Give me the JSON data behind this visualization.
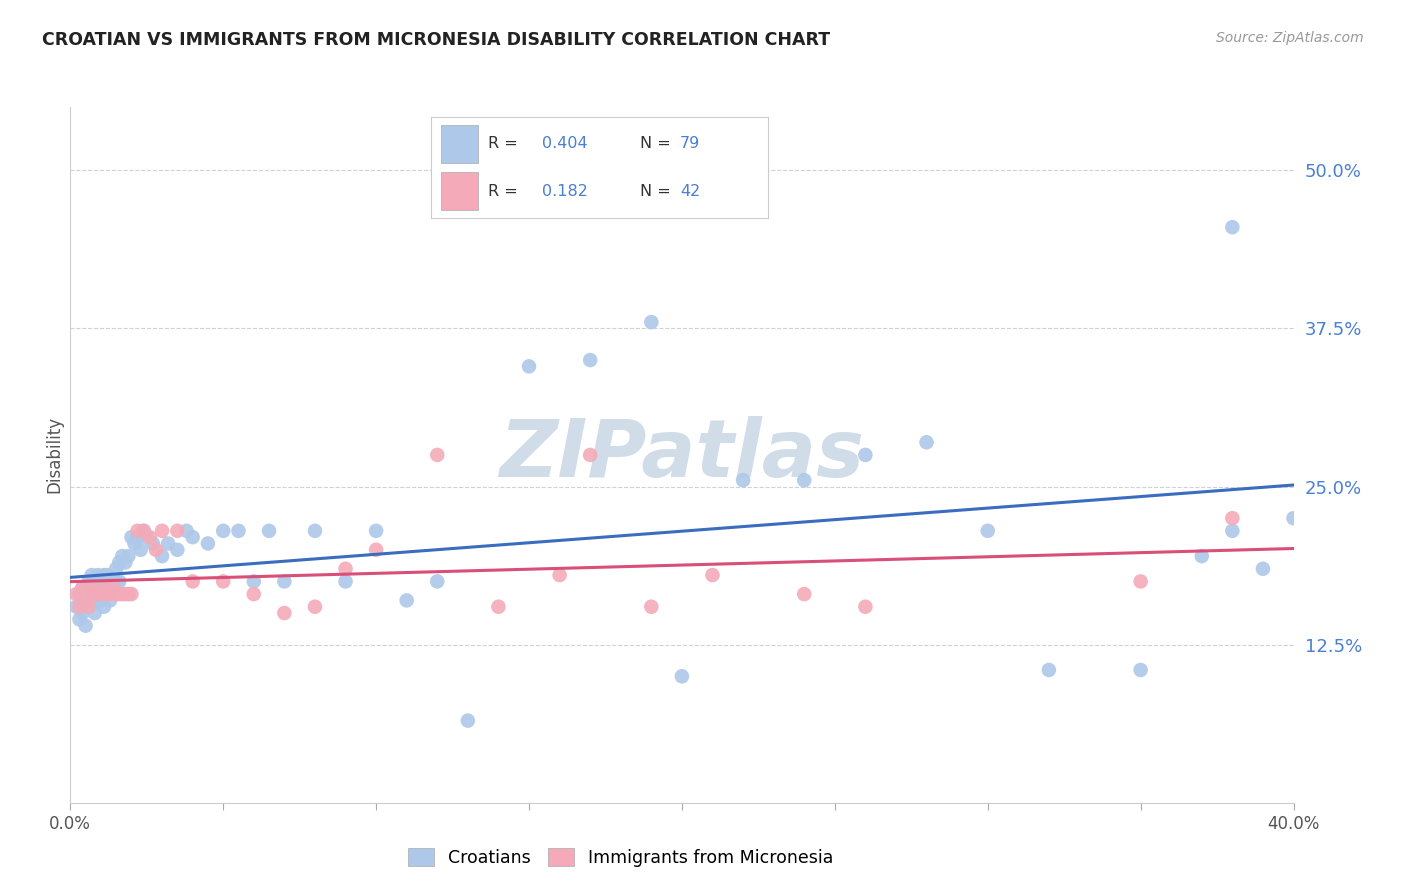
{
  "title": "CROATIAN VS IMMIGRANTS FROM MICRONESIA DISABILITY CORRELATION CHART",
  "source": "Source: ZipAtlas.com",
  "ylabel": "Disability",
  "ytick_labels": [
    "50.0%",
    "37.5%",
    "25.0%",
    "12.5%"
  ],
  "ytick_values": [
    0.5,
    0.375,
    0.25,
    0.125
  ],
  "xlim": [
    0.0,
    0.4
  ],
  "ylim": [
    0.0,
    0.55
  ],
  "legend1_r": "0.404",
  "legend1_n": "79",
  "legend2_r": "0.182",
  "legend2_n": "42",
  "croatian_color": "#adc8e8",
  "micronesia_color": "#f4aab8",
  "line_blue": "#3a6dbf",
  "line_pink": "#d94f78",
  "text_blue": "#4a7fd4",
  "watermark_color": "#d0dce8",
  "croatian_x": [
    0.002,
    0.003,
    0.003,
    0.004,
    0.004,
    0.005,
    0.005,
    0.005,
    0.006,
    0.006,
    0.006,
    0.007,
    0.007,
    0.007,
    0.008,
    0.008,
    0.008,
    0.009,
    0.009,
    0.009,
    0.01,
    0.01,
    0.01,
    0.011,
    0.011,
    0.011,
    0.012,
    0.012,
    0.013,
    0.013,
    0.014,
    0.014,
    0.015,
    0.015,
    0.016,
    0.016,
    0.017,
    0.018,
    0.019,
    0.02,
    0.021,
    0.022,
    0.023,
    0.024,
    0.025,
    0.027,
    0.03,
    0.032,
    0.035,
    0.038,
    0.04,
    0.045,
    0.05,
    0.055,
    0.06,
    0.065,
    0.07,
    0.08,
    0.09,
    0.1,
    0.11,
    0.12,
    0.13,
    0.15,
    0.17,
    0.19,
    0.2,
    0.22,
    0.24,
    0.26,
    0.28,
    0.3,
    0.32,
    0.35,
    0.37,
    0.38,
    0.38,
    0.39,
    0.4
  ],
  "croatian_y": [
    0.155,
    0.145,
    0.165,
    0.15,
    0.17,
    0.16,
    0.14,
    0.17,
    0.155,
    0.175,
    0.16,
    0.16,
    0.18,
    0.17,
    0.16,
    0.175,
    0.15,
    0.16,
    0.175,
    0.18,
    0.16,
    0.175,
    0.165,
    0.17,
    0.18,
    0.155,
    0.17,
    0.18,
    0.175,
    0.16,
    0.175,
    0.17,
    0.175,
    0.185,
    0.175,
    0.19,
    0.195,
    0.19,
    0.195,
    0.21,
    0.205,
    0.21,
    0.2,
    0.215,
    0.21,
    0.205,
    0.195,
    0.205,
    0.2,
    0.215,
    0.21,
    0.205,
    0.215,
    0.215,
    0.175,
    0.215,
    0.175,
    0.215,
    0.175,
    0.215,
    0.16,
    0.175,
    0.065,
    0.345,
    0.35,
    0.38,
    0.1,
    0.255,
    0.255,
    0.275,
    0.285,
    0.215,
    0.105,
    0.105,
    0.195,
    0.215,
    0.455,
    0.185,
    0.225
  ],
  "micronesia_x": [
    0.002,
    0.003,
    0.004,
    0.005,
    0.006,
    0.007,
    0.008,
    0.009,
    0.01,
    0.011,
    0.012,
    0.013,
    0.014,
    0.015,
    0.016,
    0.017,
    0.018,
    0.019,
    0.02,
    0.022,
    0.024,
    0.026,
    0.028,
    0.03,
    0.035,
    0.04,
    0.05,
    0.06,
    0.07,
    0.08,
    0.09,
    0.1,
    0.12,
    0.14,
    0.16,
    0.17,
    0.19,
    0.21,
    0.24,
    0.26,
    0.35,
    0.38
  ],
  "micronesia_y": [
    0.165,
    0.155,
    0.17,
    0.16,
    0.155,
    0.17,
    0.165,
    0.165,
    0.165,
    0.17,
    0.165,
    0.165,
    0.17,
    0.165,
    0.165,
    0.165,
    0.165,
    0.165,
    0.165,
    0.215,
    0.215,
    0.21,
    0.2,
    0.215,
    0.215,
    0.175,
    0.175,
    0.165,
    0.15,
    0.155,
    0.185,
    0.2,
    0.275,
    0.155,
    0.18,
    0.275,
    0.155,
    0.18,
    0.165,
    0.155,
    0.175,
    0.225
  ]
}
